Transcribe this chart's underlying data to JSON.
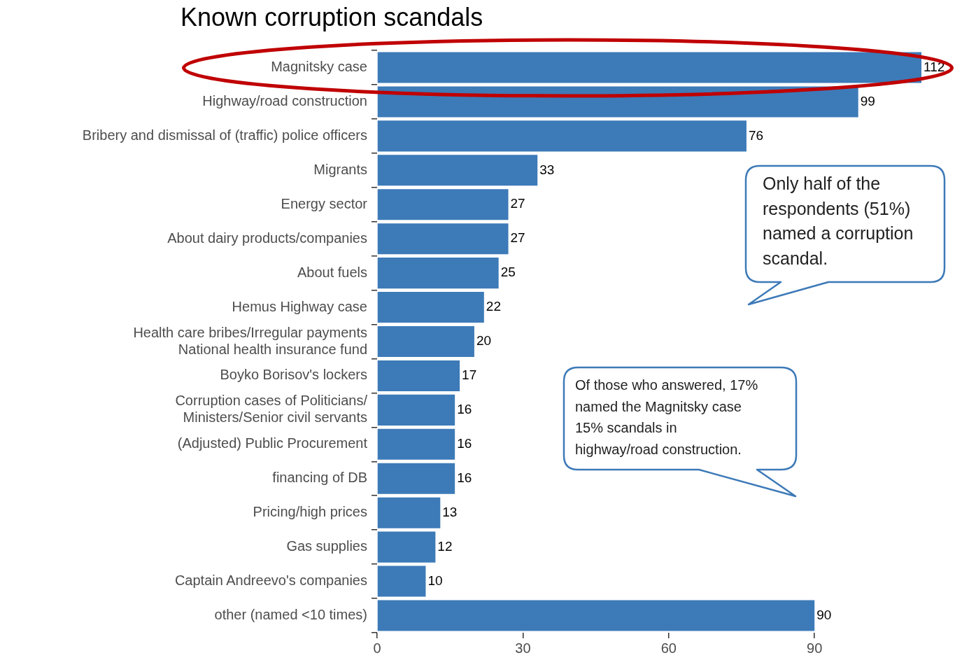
{
  "chart_data": {
    "type": "bar",
    "orientation": "horizontal",
    "title": "Known corruption scandals",
    "categories": [
      "Magnitsky case",
      "Highway/road construction",
      "Bribery and dismissal of (traffic) police officers",
      "Migrants",
      "Energy sector",
      "About dairy products/companies",
      "About fuels",
      "Hemus Highway case",
      "Health care bribes/Irregular payments\nNational health insurance fund",
      "Boyko Borisov's lockers",
      "Corruption cases of Politicians/\nMinisters/Senior civil servants",
      "(Adjusted) Public Procurement",
      "financing of DB",
      "Pricing/high prices",
      "Gas supplies",
      "Captain Andreevo's companies",
      "other (named <10 times)"
    ],
    "values": [
      112,
      99,
      76,
      33,
      27,
      27,
      25,
      22,
      20,
      17,
      16,
      16,
      16,
      13,
      12,
      10,
      90
    ],
    "color": "#3d7ab8",
    "xlim": [
      0,
      112
    ],
    "xticks": [
      0,
      30,
      60,
      90
    ],
    "grid": false,
    "legend": false,
    "data_labels": true,
    "annotations": [
      "Only half of the respondents (51%) named a corruption scandal.",
      "Of those who answered, 17% named the Magnitsky case 15% scandals in highway/road construction."
    ]
  }
}
